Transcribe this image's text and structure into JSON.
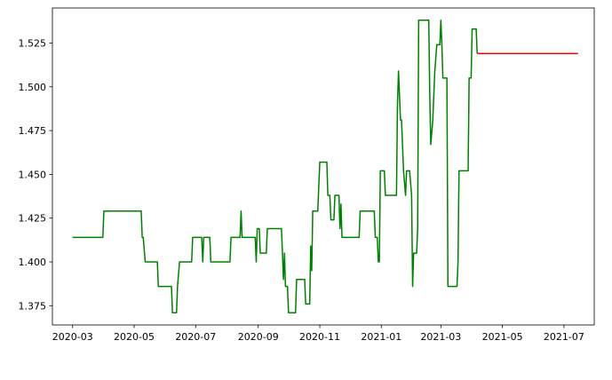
{
  "chart_data": {
    "type": "line",
    "title": "",
    "xlabel": "",
    "ylabel": "",
    "grid": false,
    "xlim": [
      "2020-02-10",
      "2021-07-31"
    ],
    "ylim": [
      1.364,
      1.545
    ],
    "x_ticks": [
      "2020-03",
      "2020-05",
      "2020-07",
      "2020-09",
      "2020-11",
      "2021-01",
      "2021-03",
      "2021-05",
      "2021-07"
    ],
    "y_ticks": [
      "1.375",
      "1.400",
      "1.425",
      "1.450",
      "1.475",
      "1.500",
      "1.525"
    ],
    "series": [
      {
        "color": "#008000",
        "points": [
          [
            "2020-03-01",
            1.414
          ],
          [
            "2020-03-31",
            1.414
          ],
          [
            "2020-04-01",
            1.429
          ],
          [
            "2020-05-08",
            1.429
          ],
          [
            "2020-05-09",
            1.414
          ],
          [
            "2020-05-10",
            1.414
          ],
          [
            "2020-05-12",
            1.4
          ],
          [
            "2020-05-24",
            1.4
          ],
          [
            "2020-05-25",
            1.386
          ],
          [
            "2020-06-07",
            1.386
          ],
          [
            "2020-06-08",
            1.371
          ],
          [
            "2020-06-12",
            1.371
          ],
          [
            "2020-06-13",
            1.386
          ],
          [
            "2020-06-15",
            1.4
          ],
          [
            "2020-06-27",
            1.4
          ],
          [
            "2020-06-28",
            1.414
          ],
          [
            "2020-07-07",
            1.414
          ],
          [
            "2020-07-08",
            1.4
          ],
          [
            "2020-07-09",
            1.414
          ],
          [
            "2020-07-15",
            1.414
          ],
          [
            "2020-07-16",
            1.4
          ],
          [
            "2020-08-04",
            1.4
          ],
          [
            "2020-08-05",
            1.414
          ],
          [
            "2020-08-14",
            1.414
          ],
          [
            "2020-08-15",
            1.429
          ],
          [
            "2020-08-16",
            1.414
          ],
          [
            "2020-08-29",
            1.414
          ],
          [
            "2020-08-30",
            1.4
          ],
          [
            "2020-08-31",
            1.419
          ],
          [
            "2020-09-02",
            1.419
          ],
          [
            "2020-09-03",
            1.405
          ],
          [
            "2020-09-09",
            1.405
          ],
          [
            "2020-09-10",
            1.419
          ],
          [
            "2020-09-24",
            1.419
          ],
          [
            "2020-09-25",
            1.405
          ],
          [
            "2020-09-26",
            1.39
          ],
          [
            "2020-09-27",
            1.405
          ],
          [
            "2020-09-28",
            1.386
          ],
          [
            "2020-09-30",
            1.386
          ],
          [
            "2020-10-01",
            1.371
          ],
          [
            "2020-10-08",
            1.371
          ],
          [
            "2020-10-09",
            1.39
          ],
          [
            "2020-10-17",
            1.39
          ],
          [
            "2020-10-18",
            1.376
          ],
          [
            "2020-10-22",
            1.376
          ],
          [
            "2020-10-23",
            1.409
          ],
          [
            "2020-10-24",
            1.395
          ],
          [
            "2020-10-25",
            1.429
          ],
          [
            "2020-10-30",
            1.429
          ],
          [
            "2020-11-01",
            1.457
          ],
          [
            "2020-11-08",
            1.457
          ],
          [
            "2020-11-09",
            1.438
          ],
          [
            "2020-11-11",
            1.438
          ],
          [
            "2020-11-12",
            1.424
          ],
          [
            "2020-11-15",
            1.424
          ],
          [
            "2020-11-16",
            1.438
          ],
          [
            "2020-11-20",
            1.438
          ],
          [
            "2020-11-21",
            1.419
          ],
          [
            "2020-11-22",
            1.433
          ],
          [
            "2020-11-23",
            1.414
          ],
          [
            "2020-12-10",
            1.414
          ],
          [
            "2020-12-11",
            1.429
          ],
          [
            "2020-12-25",
            1.429
          ],
          [
            "2020-12-26",
            1.414
          ],
          [
            "2020-12-28",
            1.414
          ],
          [
            "2020-12-29",
            1.4
          ],
          [
            "2020-12-30",
            1.4
          ],
          [
            "2020-12-31",
            1.452
          ],
          [
            "2021-01-04",
            1.452
          ],
          [
            "2021-01-05",
            1.438
          ],
          [
            "2021-01-16",
            1.438
          ],
          [
            "2021-01-17",
            1.49
          ],
          [
            "2021-01-18",
            1.509
          ],
          [
            "2021-01-20",
            1.481
          ],
          [
            "2021-01-21",
            1.481
          ],
          [
            "2021-01-23",
            1.452
          ],
          [
            "2021-01-25",
            1.438
          ],
          [
            "2021-01-26",
            1.452
          ],
          [
            "2021-01-29",
            1.452
          ],
          [
            "2021-01-31",
            1.438
          ],
          [
            "2021-02-01",
            1.386
          ],
          [
            "2021-02-02",
            1.405
          ],
          [
            "2021-02-05",
            1.405
          ],
          [
            "2021-02-06",
            1.419
          ],
          [
            "2021-02-07",
            1.538
          ],
          [
            "2021-02-17",
            1.538
          ],
          [
            "2021-02-18",
            1.495
          ],
          [
            "2021-02-19",
            1.467
          ],
          [
            "2021-02-21",
            1.481
          ],
          [
            "2021-02-23",
            1.509
          ],
          [
            "2021-02-25",
            1.524
          ],
          [
            "2021-02-28",
            1.524
          ],
          [
            "2021-03-01",
            1.538
          ],
          [
            "2021-03-02",
            1.524
          ],
          [
            "2021-03-03",
            1.505
          ],
          [
            "2021-03-07",
            1.505
          ],
          [
            "2021-03-08",
            1.386
          ],
          [
            "2021-03-17",
            1.386
          ],
          [
            "2021-03-18",
            1.4
          ],
          [
            "2021-03-19",
            1.452
          ],
          [
            "2021-03-28",
            1.452
          ],
          [
            "2021-03-29",
            1.505
          ],
          [
            "2021-03-31",
            1.505
          ],
          [
            "2021-04-01",
            1.533
          ],
          [
            "2021-04-05",
            1.533
          ],
          [
            "2021-04-06",
            1.519
          ]
        ]
      },
      {
        "color": "#ff0000",
        "points": [
          [
            "2021-04-06",
            1.519
          ],
          [
            "2021-07-15",
            1.519
          ]
        ]
      }
    ]
  }
}
